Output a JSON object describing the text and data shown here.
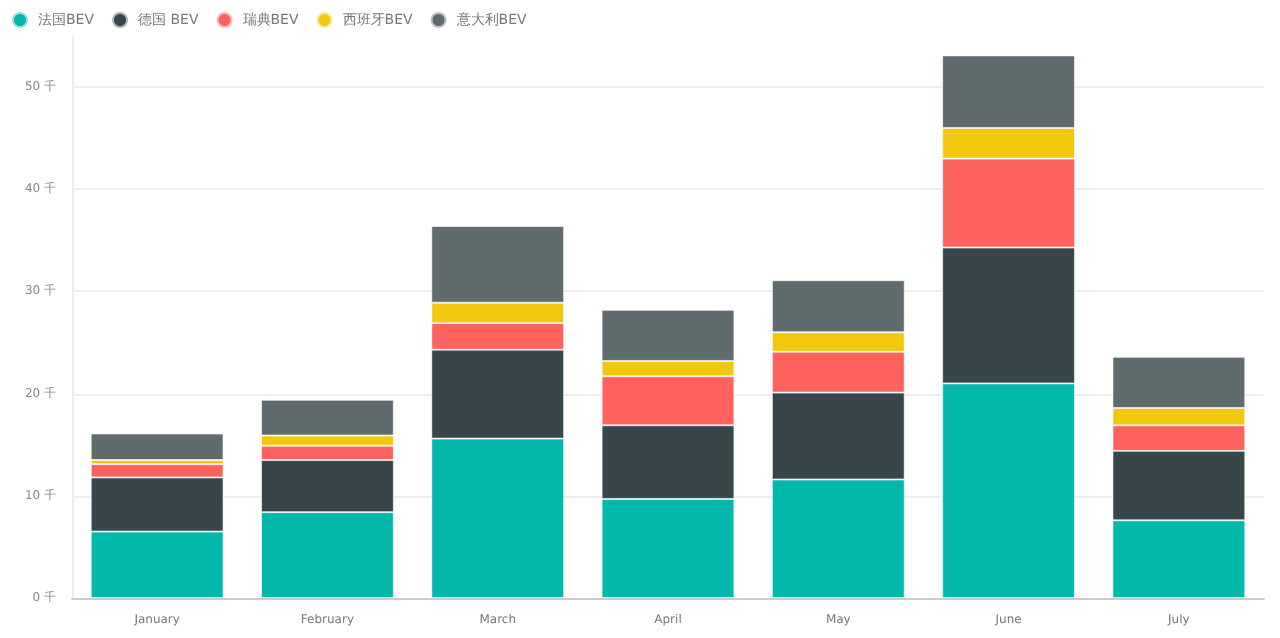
{
  "chart_data": {
    "type": "bar",
    "stacked": true,
    "categories": [
      "January",
      "February",
      "March",
      "April",
      "May",
      "June",
      "July"
    ],
    "series": [
      {
        "name": "法国BEV",
        "color": "#01b8aa",
        "values": [
          6.5,
          8.4,
          15.6,
          9.7,
          11.6,
          21.0,
          7.6
        ]
      },
      {
        "name": "德国 BEV",
        "color": "#374649",
        "values": [
          5.3,
          5.1,
          8.7,
          7.2,
          8.5,
          13.3,
          6.8
        ]
      },
      {
        "name": "瑞典BEV",
        "color": "#fd625e",
        "values": [
          1.3,
          1.4,
          2.6,
          4.8,
          4.0,
          8.7,
          2.5
        ]
      },
      {
        "name": "西班牙BEV",
        "color": "#f2c80f",
        "values": [
          0.4,
          1.0,
          2.0,
          1.5,
          1.9,
          3.0,
          1.7
        ]
      },
      {
        "name": "意大利BEV",
        "color": "#5f6b6d",
        "values": [
          2.6,
          3.5,
          7.5,
          5.0,
          5.1,
          7.1,
          5.0
        ]
      }
    ],
    "ylim": [
      0,
      55
    ],
    "yticks": [
      {
        "value": 0,
        "label": "0 千"
      },
      {
        "value": 10,
        "label": "10 千"
      },
      {
        "value": 20,
        "label": "20 千"
      },
      {
        "value": 30,
        "label": "30 千"
      },
      {
        "value": 40,
        "label": "40 千"
      },
      {
        "value": 50,
        "label": "50 千"
      }
    ],
    "grid": "y",
    "legend": "top left"
  }
}
